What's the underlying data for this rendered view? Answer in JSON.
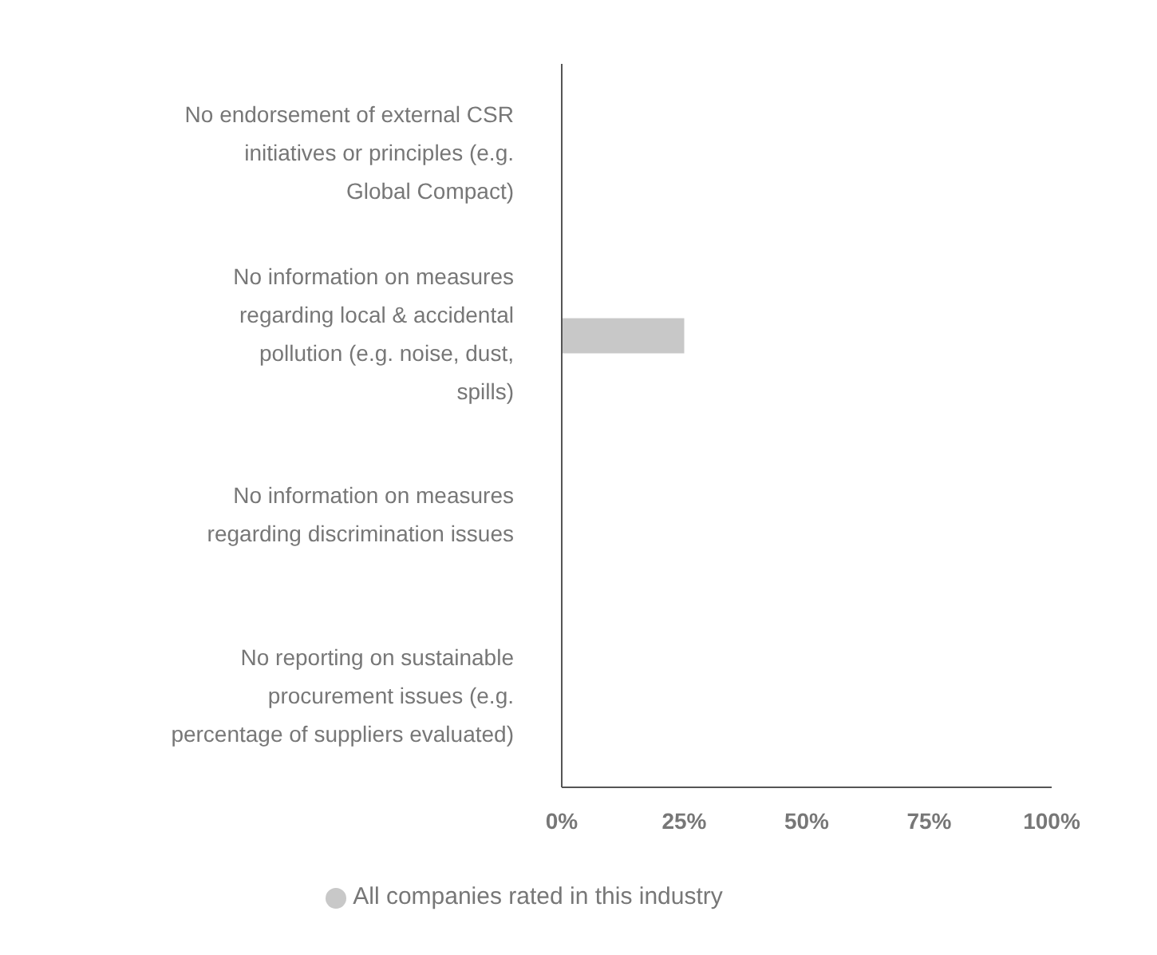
{
  "chart_data": {
    "type": "bar",
    "orientation": "horizontal",
    "categories": [
      "No endorsement of external CSR initiatives or principles (e.g. Global Compact)",
      "No information on measures regarding local & accidental pollution (e.g. noise, dust, spills)",
      "No information on measures regarding discrimination issues",
      "No reporting on sustainable procurement issues (e.g. percentage of suppliers evaluated)"
    ],
    "series": [
      {
        "name": "All companies rated in this industry",
        "color": "#c8c8c8",
        "values": [
          0,
          25,
          0,
          0
        ]
      }
    ],
    "xlim": [
      0,
      100
    ],
    "xticks": [
      {
        "value": 0,
        "label": "0%"
      },
      {
        "value": 25,
        "label": "25%"
      },
      {
        "value": 50,
        "label": "50%"
      },
      {
        "value": 75,
        "label": "75%"
      },
      {
        "value": 100,
        "label": "100%"
      }
    ],
    "grid": false,
    "legend": "bottom"
  }
}
